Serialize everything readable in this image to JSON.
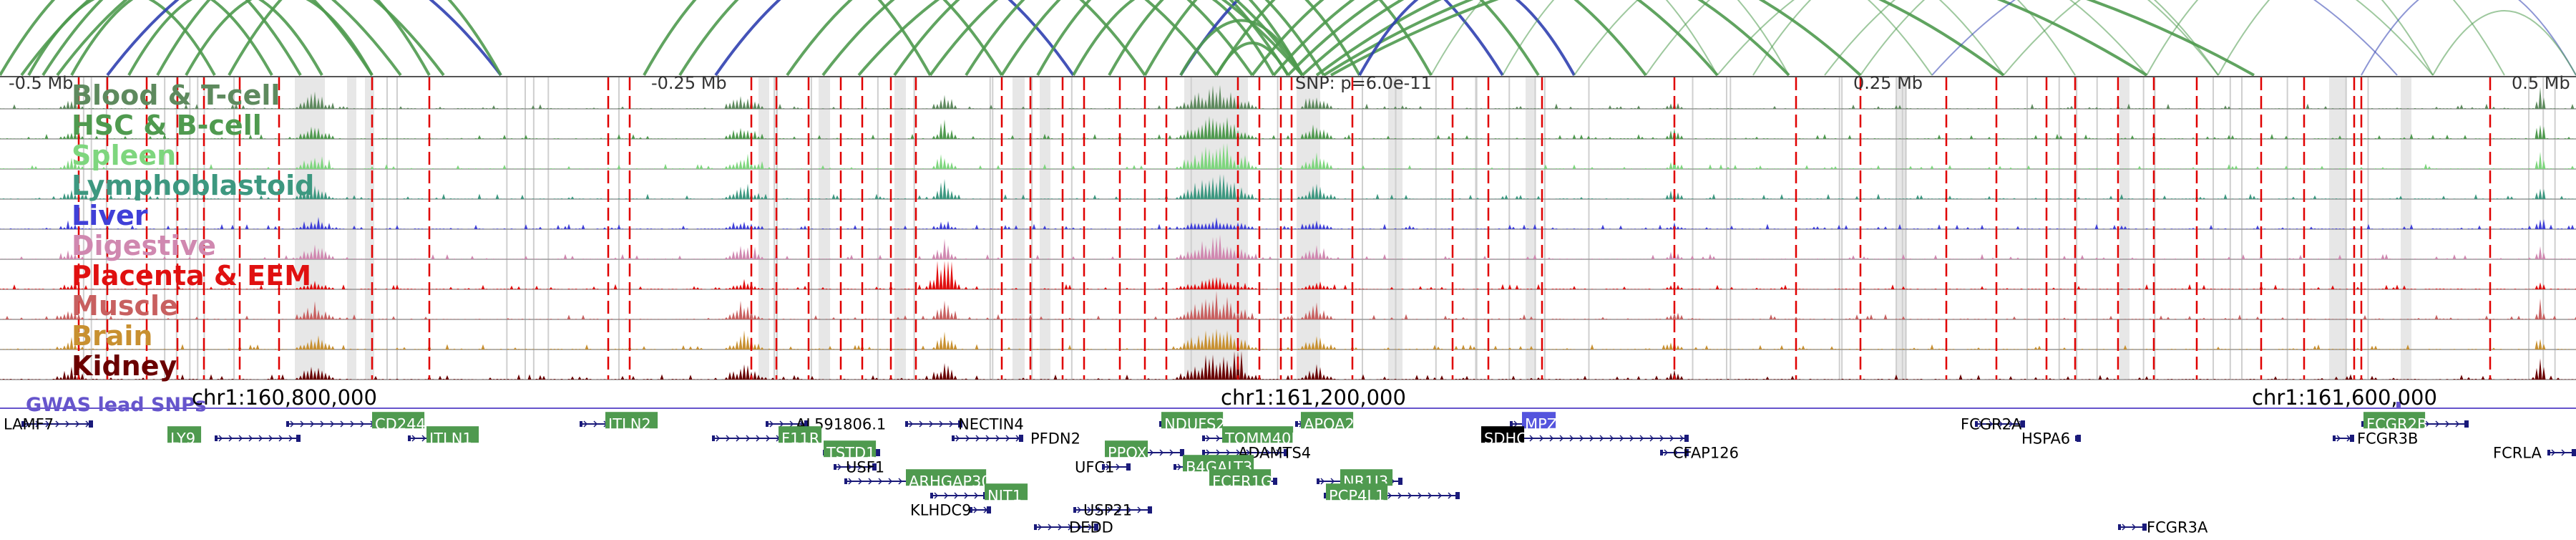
{
  "axis_top": {
    "ticks": [
      {
        "label": "-0.5 Mb"
      },
      {
        "label": "-0.25 Mb"
      },
      {
        "label": "0.25 Mb"
      },
      {
        "label": "0.5 Mb"
      }
    ],
    "snp_label": "SNP: p=6.0e-11"
  },
  "tracks": [
    {
      "label": "Blood & T-cell",
      "color": "#5e8a5e"
    },
    {
      "label": "HSC & B-cell",
      "color": "#4f9a4f"
    },
    {
      "label": "Spleen",
      "color": "#7ed67e"
    },
    {
      "label": "Lymphoblastoid",
      "color": "#3d9880"
    },
    {
      "label": "Liver",
      "color": "#4040d8"
    },
    {
      "label": "Digestive",
      "color": "#d088b0"
    },
    {
      "label": "Placenta & EEM",
      "color": "#e01010"
    },
    {
      "label": "Muscle",
      "color": "#c86060"
    },
    {
      "label": "Brain",
      "color": "#c89030"
    },
    {
      "label": "Kidney",
      "color": "#6a0000"
    }
  ],
  "gwas_label": "GWAS lead SNPs",
  "coordinates": [
    {
      "label": "chr1:160,800,000"
    },
    {
      "label": "chr1:161,200,000"
    },
    {
      "label": "chr1:161,600,000"
    }
  ],
  "genes": [
    {
      "name": "LAMF7",
      "highlight": false
    },
    {
      "name": "LY9",
      "highlight": true
    },
    {
      "name": "CD244",
      "highlight": true
    },
    {
      "name": "ITLN1",
      "highlight": true
    },
    {
      "name": "ITLN2",
      "highlight": true
    },
    {
      "name": "AL591806.1",
      "highlight": false
    },
    {
      "name": "F11R",
      "highlight": true
    },
    {
      "name": "NECTIN4",
      "highlight": false
    },
    {
      "name": "PFDN2",
      "highlight": false
    },
    {
      "name": "TSTD1",
      "highlight": true
    },
    {
      "name": "USF1",
      "highlight": false
    },
    {
      "name": "ARHGAP30",
      "highlight": true
    },
    {
      "name": "NIT1",
      "highlight": true
    },
    {
      "name": "KLHDC9",
      "highlight": false
    },
    {
      "name": "PPOX",
      "highlight": true
    },
    {
      "name": "UFC1",
      "highlight": false
    },
    {
      "name": "USP21",
      "highlight": false
    },
    {
      "name": "DEDD",
      "highlight": false
    },
    {
      "name": "NDUFS2",
      "highlight": true
    },
    {
      "name": "TOMM40L",
      "highlight": true
    },
    {
      "name": "APOA2",
      "highlight": true
    },
    {
      "name": "ADAMTS4",
      "highlight": false
    },
    {
      "name": "B4GALT3",
      "highlight": true
    },
    {
      "name": "FCER1G",
      "highlight": true
    },
    {
      "name": "NR1I3",
      "highlight": true
    },
    {
      "name": "PCP4L1",
      "highlight": true
    },
    {
      "name": "MPZ",
      "highlight": "blue"
    },
    {
      "name": "SDHC",
      "highlight": "black"
    },
    {
      "name": "CFAP126",
      "highlight": false
    },
    {
      "name": "FCGR2A",
      "highlight": false
    },
    {
      "name": "HSPA6",
      "highlight": false
    },
    {
      "name": "FCGR3A",
      "highlight": false
    },
    {
      "name": "FCGR2B",
      "highlight": true
    },
    {
      "name": "FCGR3B",
      "highlight": false
    },
    {
      "name": "FCRLA",
      "highlight": false
    }
  ],
  "colors": {
    "gwas": "#6655cc",
    "gene_highlight": "#4f9a4f",
    "gene_highlight_blue": "#5555dd",
    "gene_text_on_highlight": "#ffffff",
    "gene_body": "#1a1a7a",
    "red_marker": "#e00000",
    "arc_green": "#4f9a4f",
    "arc_blue": "#3040b0"
  }
}
